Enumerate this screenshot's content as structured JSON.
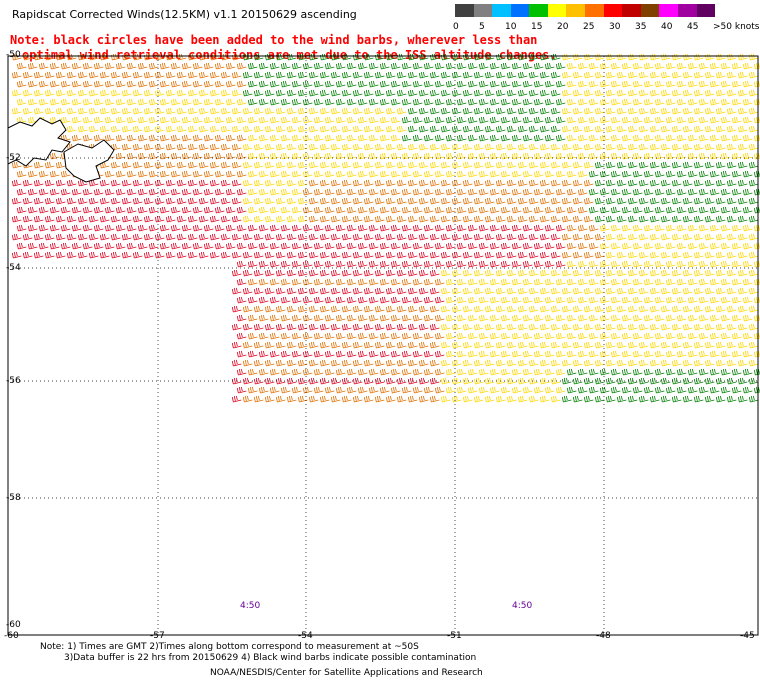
{
  "title": "Rapidscat Corrected Winds(12.5KM) v1.1 20150629 ascending",
  "notice": {
    "line1": "Note: black circles have been added to the wind barbs, wherever less than",
    "line2": "optimal wind retrieval conditions are met due to the ISS altitude changes."
  },
  "legend": {
    "labels": [
      "0",
      "5",
      "10",
      "15",
      "20",
      "25",
      "30",
      "35",
      "40",
      "45",
      ">50 knots"
    ],
    "colors": [
      "#404040",
      "#808080",
      "#00c0ff",
      "#0070ff",
      "#00c000",
      "#ffff00",
      "#ffc000",
      "#ff7000",
      "#ff0000",
      "#c00000",
      "#804000",
      "#ff00ff",
      "#a000a0",
      "#600060"
    ]
  },
  "axes": {
    "latitudes": [
      "-50",
      "-52",
      "-54",
      "-56",
      "-58",
      "-60"
    ],
    "longitudes": [
      "-60",
      "-57",
      "-54",
      "-51",
      "-48",
      "-45"
    ]
  },
  "time_labels": [
    "4:50",
    "4:50"
  ],
  "footer": {
    "line1": "Note: 1) Times are GMT 2)Times along bottom correspond to measurement at ~50S",
    "line2": "3)Data buffer is 22 hrs from 20150629 4) Black wind barbs indicate possible contamination",
    "credit": "NOAA/NESDIS/Center for Satellite Applications and Research"
  },
  "colors": {
    "speed_green": "#008000",
    "speed_yellow": "#ffd700",
    "speed_orange": "#e07000",
    "speed_red": "#e00020",
    "land": "#ffffff",
    "grid": "#000000"
  }
}
